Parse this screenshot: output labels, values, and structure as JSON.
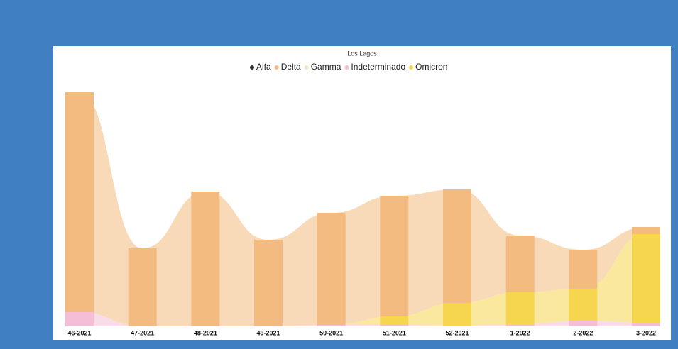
{
  "chart_data": {
    "type": "stacked_bar_area",
    "title": "Los Lagos",
    "categories": [
      "46-2021",
      "47-2021",
      "48-2021",
      "49-2021",
      "50-2021",
      "51-2021",
      "52-2021",
      "1-2022",
      "2-2022",
      "3-2022"
    ],
    "series": [
      {
        "name": "Indeterminado",
        "color": "#f4bfd6",
        "values": [
          20,
          0,
          0,
          0,
          2,
          2,
          1,
          3,
          8,
          5
        ]
      },
      {
        "name": "Omicron",
        "color": "#f6d64f",
        "values": [
          0,
          0,
          0,
          0,
          0,
          12,
          32,
          45,
          45,
          125
        ]
      },
      {
        "name": "Gamma",
        "color": "#f6e2c4",
        "values": [
          0,
          0,
          0,
          0,
          0,
          0,
          0,
          0,
          0,
          0
        ]
      },
      {
        "name": "Delta",
        "color": "#f3bb80",
        "values": [
          310,
          110,
          190,
          122,
          158,
          170,
          160,
          80,
          55,
          10
        ]
      },
      {
        "name": "Alfa",
        "color": "#333333",
        "values": [
          0,
          0,
          0,
          0,
          0,
          0,
          0,
          0,
          0,
          0
        ]
      }
    ],
    "legend_order": [
      4,
      3,
      2,
      0,
      1
    ]
  }
}
